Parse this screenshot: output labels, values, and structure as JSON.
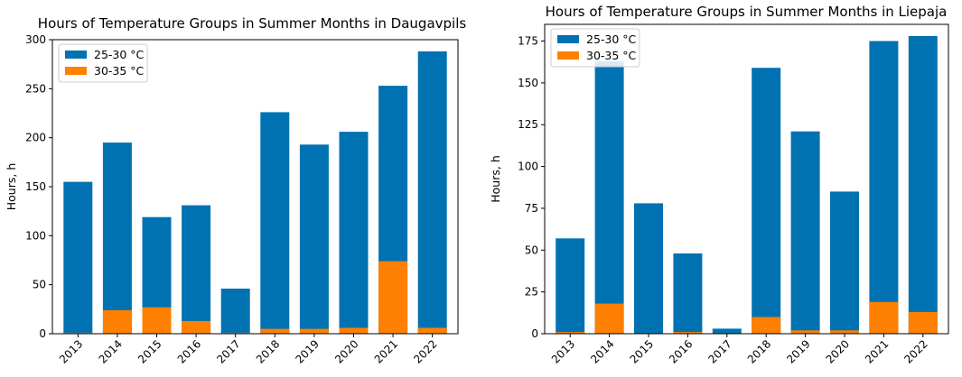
{
  "chart_data": [
    {
      "type": "bar",
      "stacking": "overlay",
      "title": "Hours of Temperature Groups in Summer Months in Daugavpils",
      "xlabel": "",
      "ylabel": "Hours, h",
      "ylim": [
        0,
        300
      ],
      "yticks": [
        0,
        50,
        100,
        150,
        200,
        250,
        300
      ],
      "categories": [
        "2013",
        "2014",
        "2015",
        "2016",
        "2017",
        "2018",
        "2019",
        "2020",
        "2021",
        "2022"
      ],
      "series": [
        {
          "name": "25-30 °C",
          "color": "#0072b2",
          "values": [
            155,
            195,
            119,
            131,
            46,
            226,
            193,
            206,
            253,
            288
          ]
        },
        {
          "name": "30-35 °C",
          "color": "#ff8000",
          "values": [
            1,
            24,
            27,
            13,
            1,
            5,
            5,
            6,
            74,
            6
          ]
        }
      ],
      "legend": "top-left"
    },
    {
      "type": "bar",
      "stacking": "overlay",
      "title": "Hours of Temperature Groups in Summer Months in Liepaja",
      "xlabel": "",
      "ylabel": "Hours, h",
      "ylim": [
        0,
        185
      ],
      "yticks": [
        0,
        25,
        50,
        75,
        100,
        125,
        150,
        175
      ],
      "categories": [
        "2013",
        "2014",
        "2015",
        "2016",
        "2017",
        "2018",
        "2019",
        "2020",
        "2021",
        "2022"
      ],
      "series": [
        {
          "name": "25-30 °C",
          "color": "#0072b2",
          "values": [
            57,
            163,
            78,
            48,
            3,
            159,
            121,
            85,
            175,
            178
          ]
        },
        {
          "name": "30-35 °C",
          "color": "#ff8000",
          "values": [
            1,
            18,
            0,
            1,
            0,
            10,
            2,
            2,
            19,
            13
          ]
        }
      ],
      "legend": "top-left"
    }
  ]
}
